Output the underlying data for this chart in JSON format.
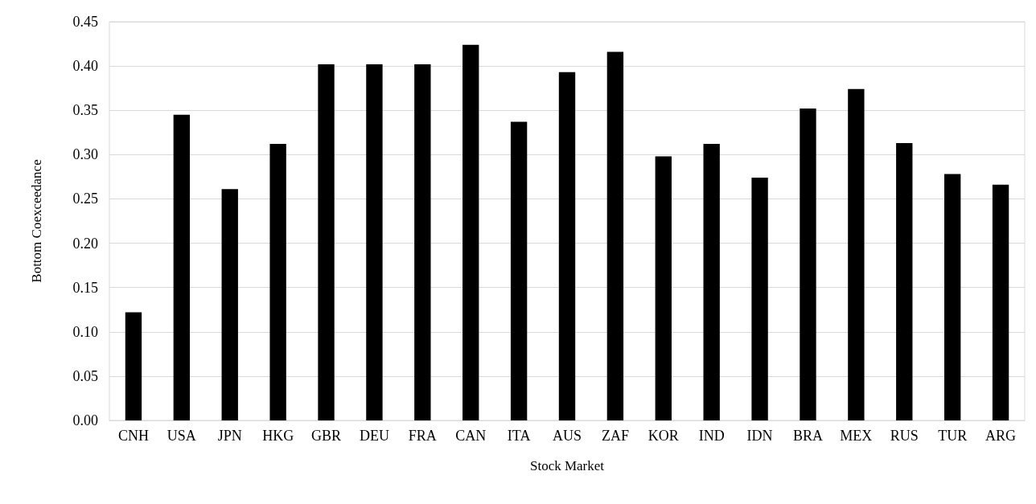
{
  "chart_data": {
    "type": "bar",
    "xlabel": "Stock Market",
    "ylabel": "Bottom Coexceedance",
    "categories": [
      "CNH",
      "USA",
      "JPN",
      "HKG",
      "GBR",
      "DEU",
      "FRA",
      "CAN",
      "ITA",
      "AUS",
      "ZAF",
      "KOR",
      "IND",
      "IDN",
      "BRA",
      "MEX",
      "RUS",
      "TUR",
      "ARG"
    ],
    "values": [
      0.122,
      0.345,
      0.261,
      0.312,
      0.402,
      0.402,
      0.402,
      0.424,
      0.337,
      0.393,
      0.416,
      0.298,
      0.312,
      0.274,
      0.352,
      0.374,
      0.313,
      0.278,
      0.266
    ],
    "color": "#000000",
    "ylim": [
      0,
      0.45
    ],
    "yticks": [
      {
        "value": 0,
        "label": "0.00"
      },
      0.05,
      {
        "value": 0.1,
        "label": "0.10"
      },
      0.15,
      {
        "value": 0.2,
        "label": "0.20"
      },
      0.25,
      {
        "value": 0.3,
        "label": "0.30"
      },
      0.35,
      {
        "value": 0.4,
        "label": "0.40"
      },
      0.45
    ],
    "grid": "y"
  }
}
